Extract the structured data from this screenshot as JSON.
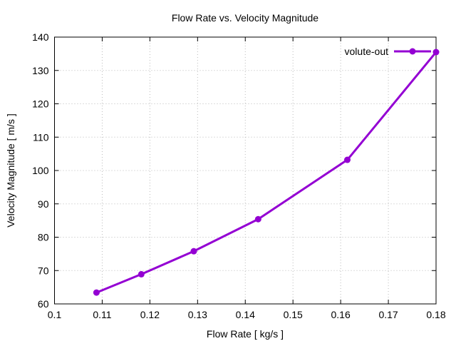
{
  "chart_data": {
    "type": "line",
    "title": "Flow Rate vs. Velocity Magnitude",
    "xlabel": "Flow Rate [ kg/s ]",
    "ylabel": "Velocity Magnitude [ m/s ]",
    "xlim": [
      0.1,
      0.18
    ],
    "ylim": [
      60,
      140
    ],
    "xticks": [
      "0.1",
      "0.11",
      "0.12",
      "0.13",
      "0.14",
      "0.15",
      "0.16",
      "0.17",
      "0.18"
    ],
    "yticks": [
      "60",
      "70",
      "80",
      "90",
      "100",
      "110",
      "120",
      "130",
      "140"
    ],
    "grid": true,
    "legend_position": "top-right",
    "series": [
      {
        "name": "volute-out",
        "color": "#9400d3",
        "x": [
          0.1088,
          0.1182,
          0.1292,
          0.1427,
          0.1614,
          0.18
        ],
        "y": [
          63.4,
          68.9,
          75.8,
          85.4,
          103.2,
          135.5
        ]
      }
    ]
  }
}
